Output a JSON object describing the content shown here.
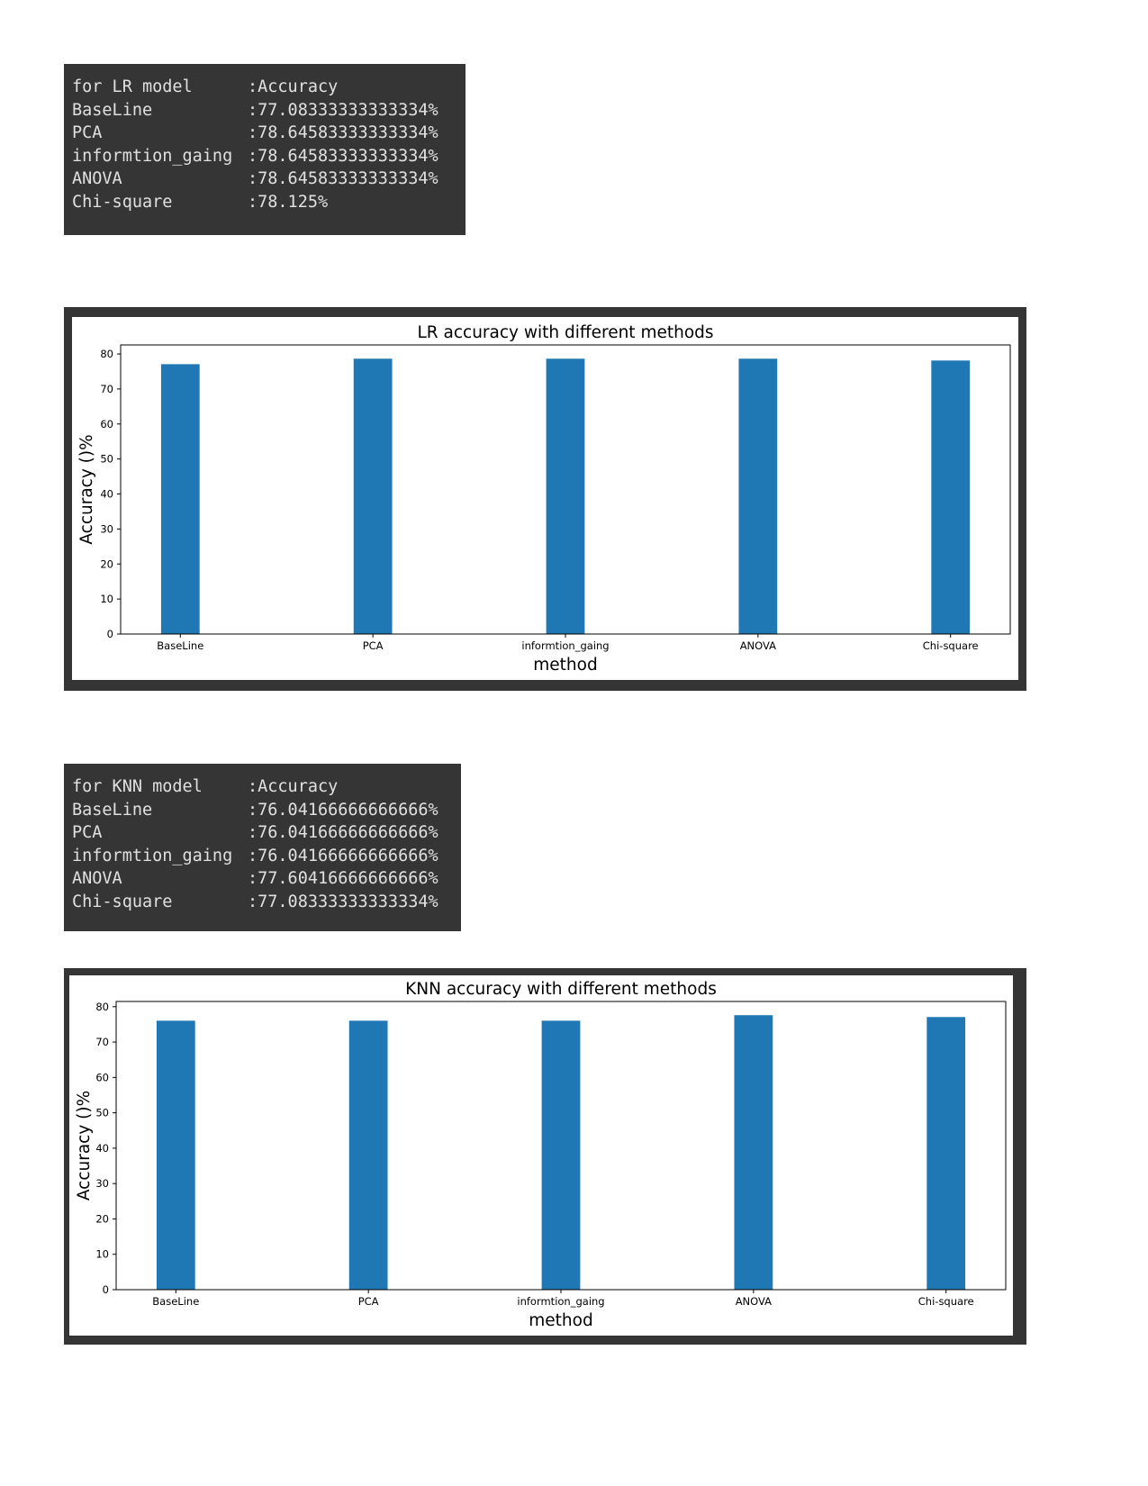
{
  "outputs": [
    {
      "header": [
        "for LR model",
        ":Accuracy"
      ],
      "rows": [
        [
          "BaseLine",
          ":77.08333333333334%"
        ],
        [
          "PCA",
          ":78.64583333333334%"
        ],
        [
          "informtion_gaing",
          ":78.64583333333334%"
        ],
        [
          "ANOVA",
          ":78.64583333333334%"
        ],
        [
          "Chi-square",
          ":78.125%"
        ]
      ]
    },
    {
      "header": [
        "for KNN model",
        ":Accuracy"
      ],
      "rows": [
        [
          "BaseLine",
          ":76.04166666666666%"
        ],
        [
          "PCA",
          ":76.04166666666666%"
        ],
        [
          "informtion_gaing",
          ":76.04166666666666%"
        ],
        [
          "ANOVA",
          ":77.60416666666666%"
        ],
        [
          "Chi-square",
          ":77.08333333333334%"
        ]
      ]
    }
  ],
  "chart_data": [
    {
      "type": "bar",
      "title": "LR accuracy with different methods",
      "x_label": "method",
      "y_label": "Accuracy ()%",
      "categories": [
        "BaseLine",
        "PCA",
        "informtion_gaing",
        "ANOVA",
        "Chi-square"
      ],
      "values": [
        77.08333333333334,
        78.64583333333334,
        78.64583333333334,
        78.64583333333334,
        78.125
      ],
      "color": "#1f77b4",
      "ylim": [
        0,
        82.58
      ],
      "yticks": [
        0,
        10,
        20,
        30,
        40,
        50,
        60,
        70,
        80
      ],
      "grid": false
    },
    {
      "type": "bar",
      "title": "KNN accuracy with different methods",
      "x_label": "method",
      "y_label": "Accuracy ()%",
      "categories": [
        "BaseLine",
        "PCA",
        "informtion_gaing",
        "ANOVA",
        "Chi-square"
      ],
      "values": [
        76.04166666666666,
        76.04166666666666,
        76.04166666666666,
        77.60416666666666,
        77.08333333333334
      ],
      "color": "#1f77b4",
      "ylim": [
        0,
        81.48
      ],
      "yticks": [
        0,
        10,
        20,
        30,
        40,
        50,
        60,
        70,
        80
      ],
      "grid": false
    }
  ]
}
